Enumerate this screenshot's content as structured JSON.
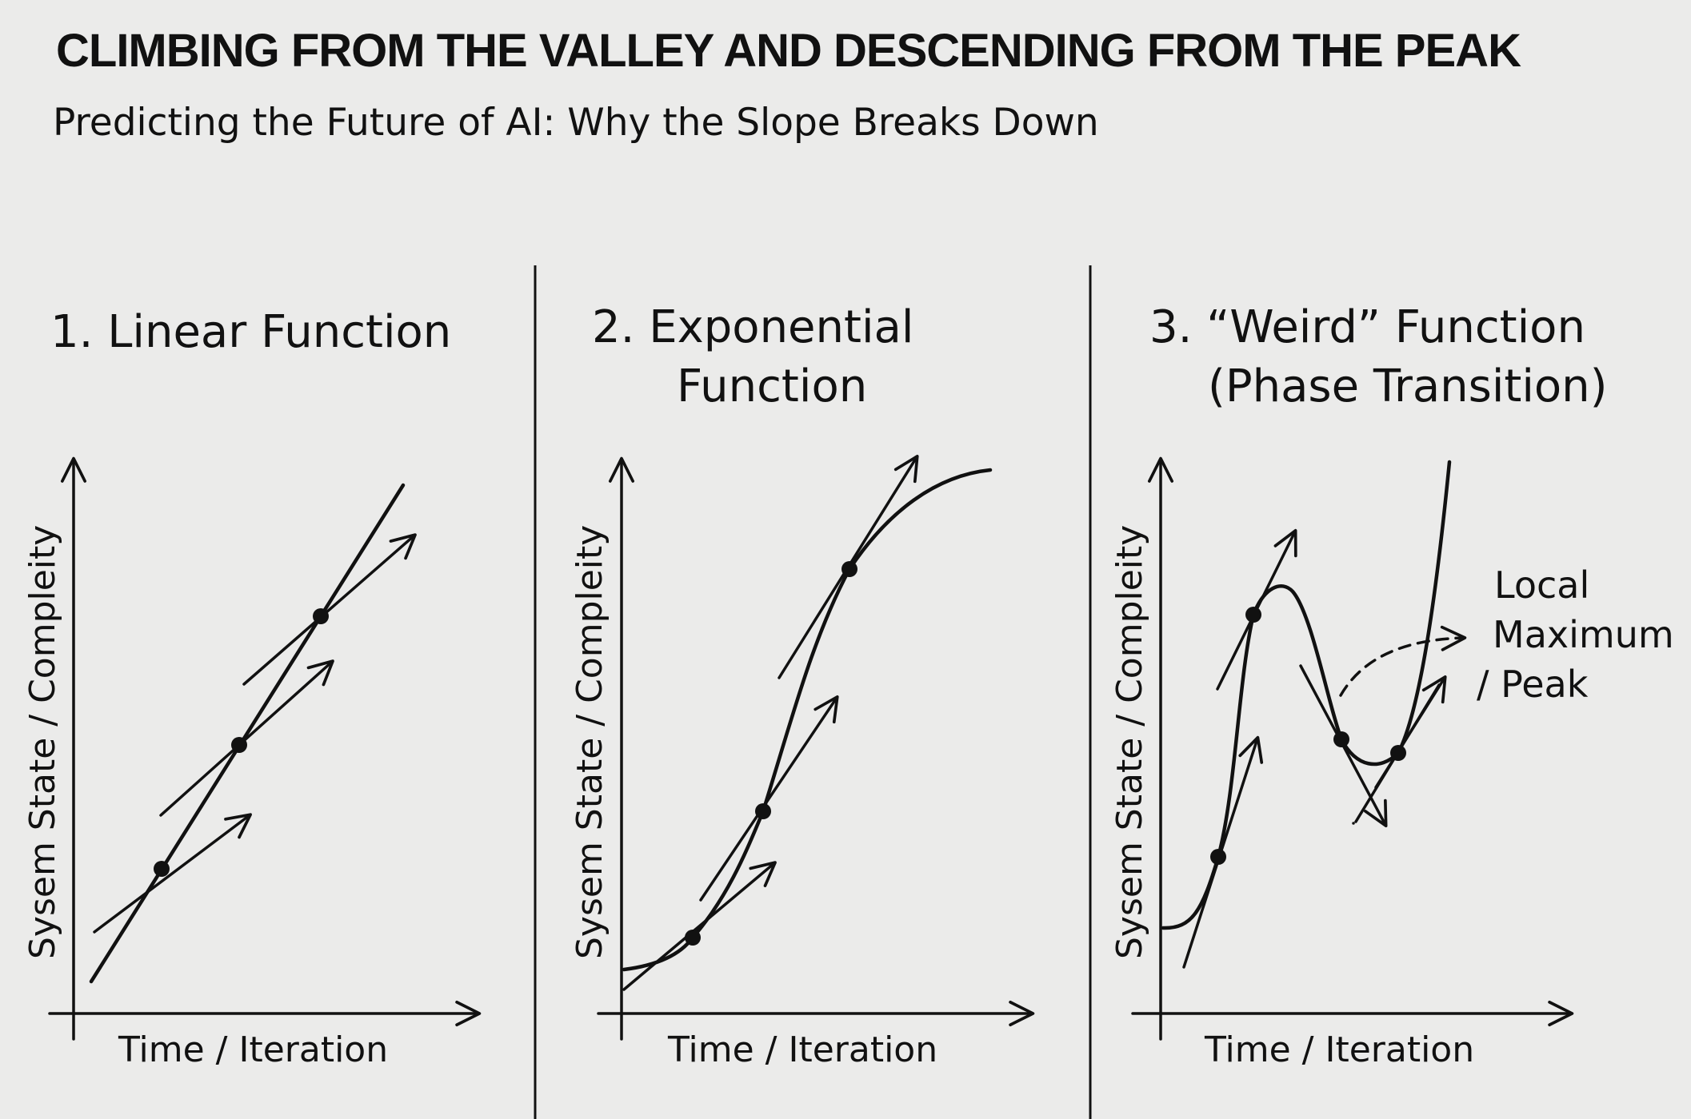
{
  "title": "CLIMBING FROM THE VALLEY AND DESCENDING FROM THE PEAK",
  "subtitle": "Predicting the Future of AI: Why the Slope Breaks Down",
  "panels": [
    {
      "title_lines": [
        "1. Linear Function"
      ],
      "x_label": "Time / Iteration",
      "y_label": "Sysem State / Compleity"
    },
    {
      "title_lines": [
        "2. Exponential",
        "Function"
      ],
      "x_label": "Time / Iteration",
      "y_label": "Sysem State / Compleity"
    },
    {
      "title_lines": [
        "3. “Weird” Function",
        "(Phase Transition)"
      ],
      "x_label": "Time / Iteration",
      "y_label": "Sysem State / Compleity",
      "annotation_lines": [
        "Local",
        "Maximum",
        "/ Peak"
      ]
    }
  ]
}
